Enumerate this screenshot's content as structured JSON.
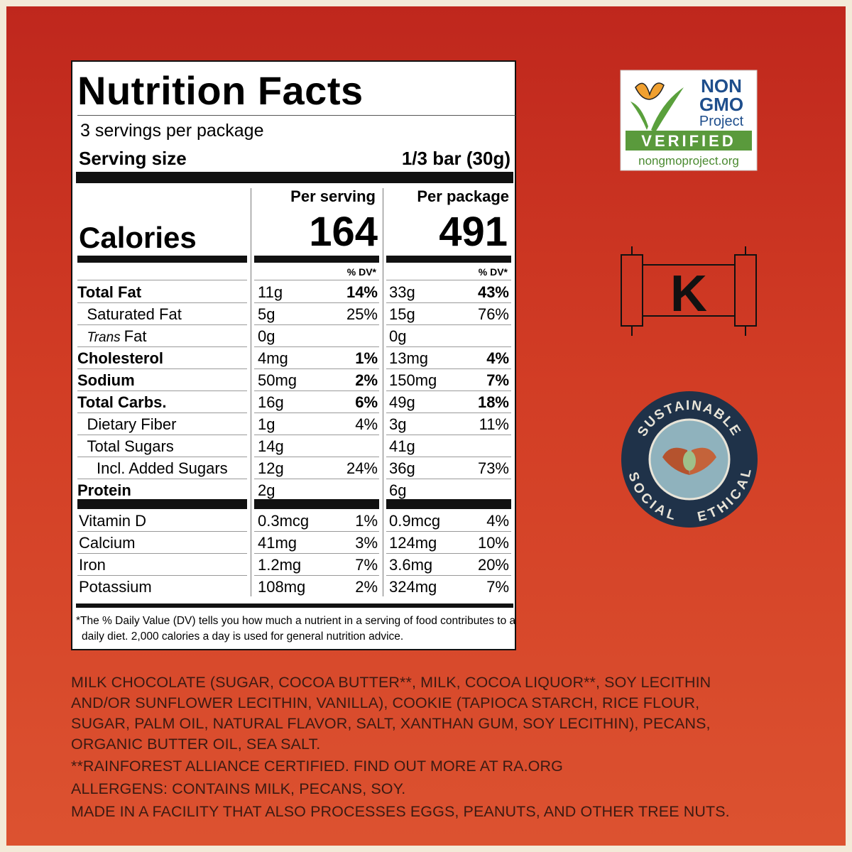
{
  "label": {
    "title": "Nutrition Facts",
    "servings": "3 servings per package",
    "serving_size_label": "Serving size",
    "serving_size": "1/3 bar (30g)",
    "calories_label": "Calories",
    "per_serving": "Per serving",
    "per_package": "Per package",
    "calories_serving": 164,
    "calories_package": 491,
    "dv_header_serving": "% DV*",
    "dv_header_package": "% DV*",
    "nutrients": [
      {
        "name": "Total Fat",
        "bold": true,
        "indent": 0,
        "serving": "11g",
        "serving_dv": "14%",
        "package": "33g",
        "package_dv": "43%"
      },
      {
        "name": "Saturated Fat",
        "bold": false,
        "indent": 1,
        "serving": "5g",
        "serving_dv": "25%",
        "package": "15g",
        "package_dv": "76%"
      },
      {
        "name_italic": "Trans",
        "name": "Fat",
        "bold": false,
        "indent": 1,
        "serving": "0g",
        "package": "0g"
      },
      {
        "name": "Cholesterol",
        "bold": true,
        "indent": 0,
        "serving": "4mg",
        "serving_dv": "1%",
        "package": "13mg",
        "package_dv": "4%"
      },
      {
        "name": "Sodium",
        "bold": true,
        "indent": 0,
        "serving": "50mg",
        "serving_dv": "2%",
        "package": "150mg",
        "package_dv": "7%"
      },
      {
        "name": "Total Carbs.",
        "bold": true,
        "indent": 0,
        "serving": "16g",
        "serving_dv": "6%",
        "package": "49g",
        "package_dv": "18%"
      },
      {
        "name": "Dietary Fiber",
        "bold": false,
        "indent": 1,
        "serving": "1g",
        "serving_dv": "4%",
        "package": "3g",
        "package_dv": "11%"
      },
      {
        "name": "Total Sugars",
        "bold": false,
        "indent": 1,
        "serving": "14g",
        "package": "41g"
      },
      {
        "name": "Incl. Added Sugars",
        "bold": false,
        "indent": 2,
        "serving": "12g",
        "serving_dv": "24%",
        "package": "36g",
        "package_dv": "73%"
      },
      {
        "name": "Protein",
        "bold": true,
        "indent": 0,
        "serving": "2g",
        "package": "6g"
      }
    ],
    "vitamins": [
      {
        "name": "Vitamin D",
        "serving": "0.3mcg",
        "serving_dv": "1%",
        "package": "0.9mcg",
        "package_dv": "4%"
      },
      {
        "name": "Calcium",
        "serving": "41mg",
        "serving_dv": "3%",
        "package": "124mg",
        "package_dv": "10%"
      },
      {
        "name": "Iron",
        "serving": "1.2mg",
        "serving_dv": "7%",
        "package": "3.6mg",
        "package_dv": "20%"
      },
      {
        "name": "Potassium",
        "serving": "108mg",
        "serving_dv": "2%",
        "package": "324mg",
        "package_dv": "7%"
      }
    ],
    "footnote": "*The % Daily Value (DV) tells you how much a nutrient in a serving of food contributes to a daily diet. 2,000 calories a day is used for general nutrition advice."
  },
  "non_gmo": {
    "line1": "NON",
    "line2": "GMO",
    "line3": "Project",
    "verified": "VERIFIED",
    "url": "nongmoproject.org"
  },
  "kosher": "K",
  "seal": {
    "top": "SUSTAINABLE",
    "left": "SOCIAL",
    "right": "ETHICAL"
  },
  "ingredients": [
    "MILK CHOCOLATE (SUGAR, COCOA BUTTER**, MILK, COCOA LIQUOR**, SOY LECITHIN AND/OR SUNFLOWER LECITHIN, VANILLA), COOKIE (TAPIOCA STARCH, RICE FLOUR, SUGAR, PALM OIL, NATURAL FLAVOR, SALT, XANTHAN GUM, SOY LECITHIN), PECANS, ORGANIC BUTTER OIL, SEA SALT.",
    "**RAINFOREST ALLIANCE CERTIFIED. FIND OUT MORE AT RA.ORG",
    "ALLERGENS: CONTAINS MILK, PECANS, SOY.",
    "MADE IN A FACILITY THAT ALSO PROCESSES EGGS, PEANUTS, AND OTHER TREE NUTS."
  ]
}
